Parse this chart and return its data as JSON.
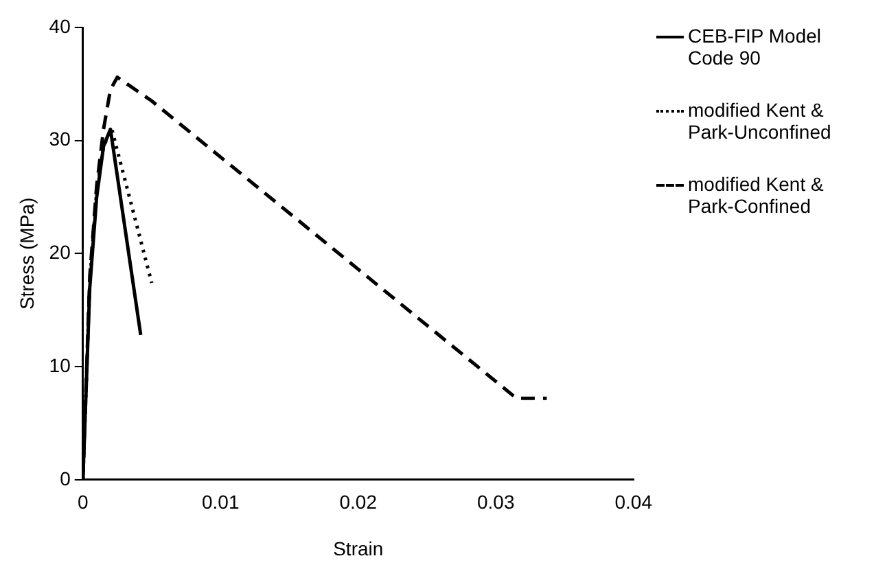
{
  "chart_data": {
    "type": "line",
    "xlabel": "Strain",
    "ylabel": "Stress (MPa)",
    "xlim": [
      0,
      0.04
    ],
    "xticks": [
      0,
      0.01,
      0.02,
      0.03,
      0.04
    ],
    "ylim": [
      0,
      40
    ],
    "yticks": [
      0,
      10,
      20,
      30,
      40
    ],
    "grid": false,
    "legend": "right",
    "marker": "none",
    "series": [
      {
        "name": "CEB-FIP Model Code 90",
        "color": "#000000",
        "line_style": "solid",
        "x": [
          0,
          0.0005,
          0.001,
          0.0015,
          0.002,
          0.0042
        ],
        "values": [
          0,
          17,
          25,
          29.5,
          31,
          12.8
        ]
      },
      {
        "name": "modified Kent & Park-Unconfined",
        "color": "#000000",
        "line_style": "dotted",
        "x": [
          0,
          0.0005,
          0.001,
          0.0015,
          0.0021,
          0.005
        ],
        "values": [
          0,
          17.5,
          25.5,
          29.5,
          31,
          17.4
        ]
      },
      {
        "name": "modified Kent & Park-Confined",
        "color": "#000000",
        "line_style": "dashed",
        "x": [
          0,
          0.0005,
          0.001,
          0.0015,
          0.002,
          0.0025,
          0.005,
          0.0315,
          0.0337
        ],
        "values": [
          0,
          18,
          26,
          31,
          34.5,
          35.6,
          33.5,
          7.2,
          7.2
        ]
      }
    ]
  }
}
